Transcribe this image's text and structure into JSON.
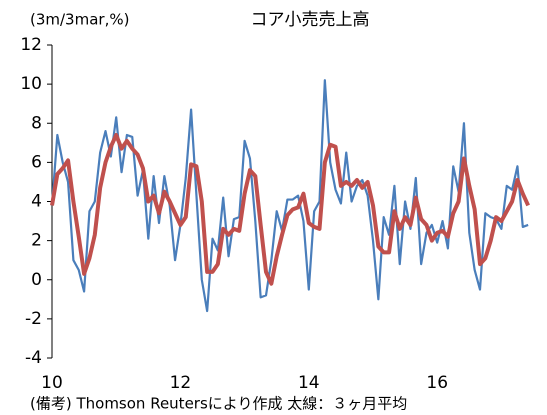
{
  "chart_data": {
    "type": "line",
    "title": "コア小売売上高",
    "y_label": "(3m/3mar,%)",
    "note": "(備考) Thomson Reutersにより作成 太線：３ヶ月平均",
    "categories": [
      "10",
      null,
      null,
      null,
      null,
      null,
      null,
      null,
      null,
      null,
      null,
      null,
      null,
      null,
      null,
      null,
      null,
      null,
      null,
      null,
      null,
      null,
      null,
      null,
      "12",
      null,
      null,
      null,
      null,
      null,
      null,
      null,
      null,
      null,
      null,
      null,
      null,
      null,
      null,
      null,
      null,
      null,
      null,
      null,
      null,
      null,
      null,
      null,
      "14",
      null,
      null,
      null,
      null,
      null,
      null,
      null,
      null,
      null,
      null,
      null,
      null,
      null,
      null,
      null,
      null,
      null,
      null,
      null,
      null,
      null,
      null,
      null,
      "16",
      null,
      null,
      null,
      null,
      null,
      null,
      null,
      null,
      null,
      null,
      null,
      null,
      null,
      null,
      null,
      null,
      null
    ],
    "series": [
      {
        "color": "#4a7ebb",
        "width": 2.2,
        "values": [
          3.8,
          7.4,
          6.0,
          5.0,
          1.0,
          0.5,
          -0.6,
          3.5,
          4.0,
          6.5,
          7.6,
          6.3,
          8.3,
          5.5,
          7.4,
          7.3,
          4.3,
          5.6,
          2.1,
          5.3,
          2.9,
          5.3,
          3.8,
          1.0,
          2.8,
          5.2,
          8.7,
          4.3,
          0.0,
          -1.6,
          2.1,
          1.5,
          4.2,
          1.2,
          3.1,
          3.2,
          7.1,
          6.2,
          3.0,
          -0.9,
          -0.8,
          1.0,
          3.5,
          2.5,
          4.1,
          4.1,
          4.3,
          3.0,
          -0.5,
          3.5,
          4.0,
          10.2,
          6.0,
          4.6,
          3.9,
          6.5,
          4.0,
          4.8,
          5.1,
          4.3,
          2.0,
          -1.0,
          3.2,
          2.3,
          4.8,
          0.8,
          4.0,
          2.6,
          5.2,
          0.8,
          2.4,
          2.8,
          1.9,
          3.0,
          1.6,
          5.8,
          4.5,
          8.0,
          2.4,
          0.5,
          -0.5,
          3.4,
          3.2,
          3.1,
          2.6,
          4.8,
          4.6,
          5.8,
          2.7,
          2.8
        ]
      },
      {
        "color": "#c0504d",
        "width": 4,
        "values": [
          3.8,
          5.4,
          5.7,
          6.1,
          4.0,
          2.2,
          0.3,
          1.1,
          2.3,
          4.7,
          6.0,
          6.8,
          7.4,
          6.7,
          7.1,
          6.7,
          6.4,
          5.7,
          4.0,
          4.3,
          3.4,
          4.5,
          4.0,
          3.4,
          2.8,
          3.2,
          5.9,
          5.8,
          4.0,
          0.4,
          0.4,
          0.8,
          2.6,
          2.3,
          2.6,
          2.5,
          4.4,
          5.6,
          5.3,
          2.8,
          0.4,
          -0.2,
          1.2,
          2.3,
          3.3,
          3.6,
          3.7,
          4.4,
          2.9,
          2.7,
          2.6,
          6.0,
          6.9,
          6.8,
          4.8,
          5.0,
          4.8,
          5.1,
          4.7,
          5.0,
          3.8,
          1.7,
          1.4,
          1.4,
          3.5,
          2.6,
          3.2,
          2.8,
          4.2,
          3.1,
          2.8,
          2.0,
          2.4,
          2.5,
          2.2,
          3.4,
          4.0,
          6.2,
          4.8,
          3.6,
          0.8,
          1.1,
          2.0,
          3.2,
          3.0,
          3.5,
          4.0,
          5.1,
          4.4,
          3.8
        ]
      }
    ],
    "ylim": [
      -4,
      12
    ],
    "yticks": [
      -4,
      -2,
      0,
      2,
      4,
      6,
      8,
      10,
      12
    ],
    "grid": false
  }
}
